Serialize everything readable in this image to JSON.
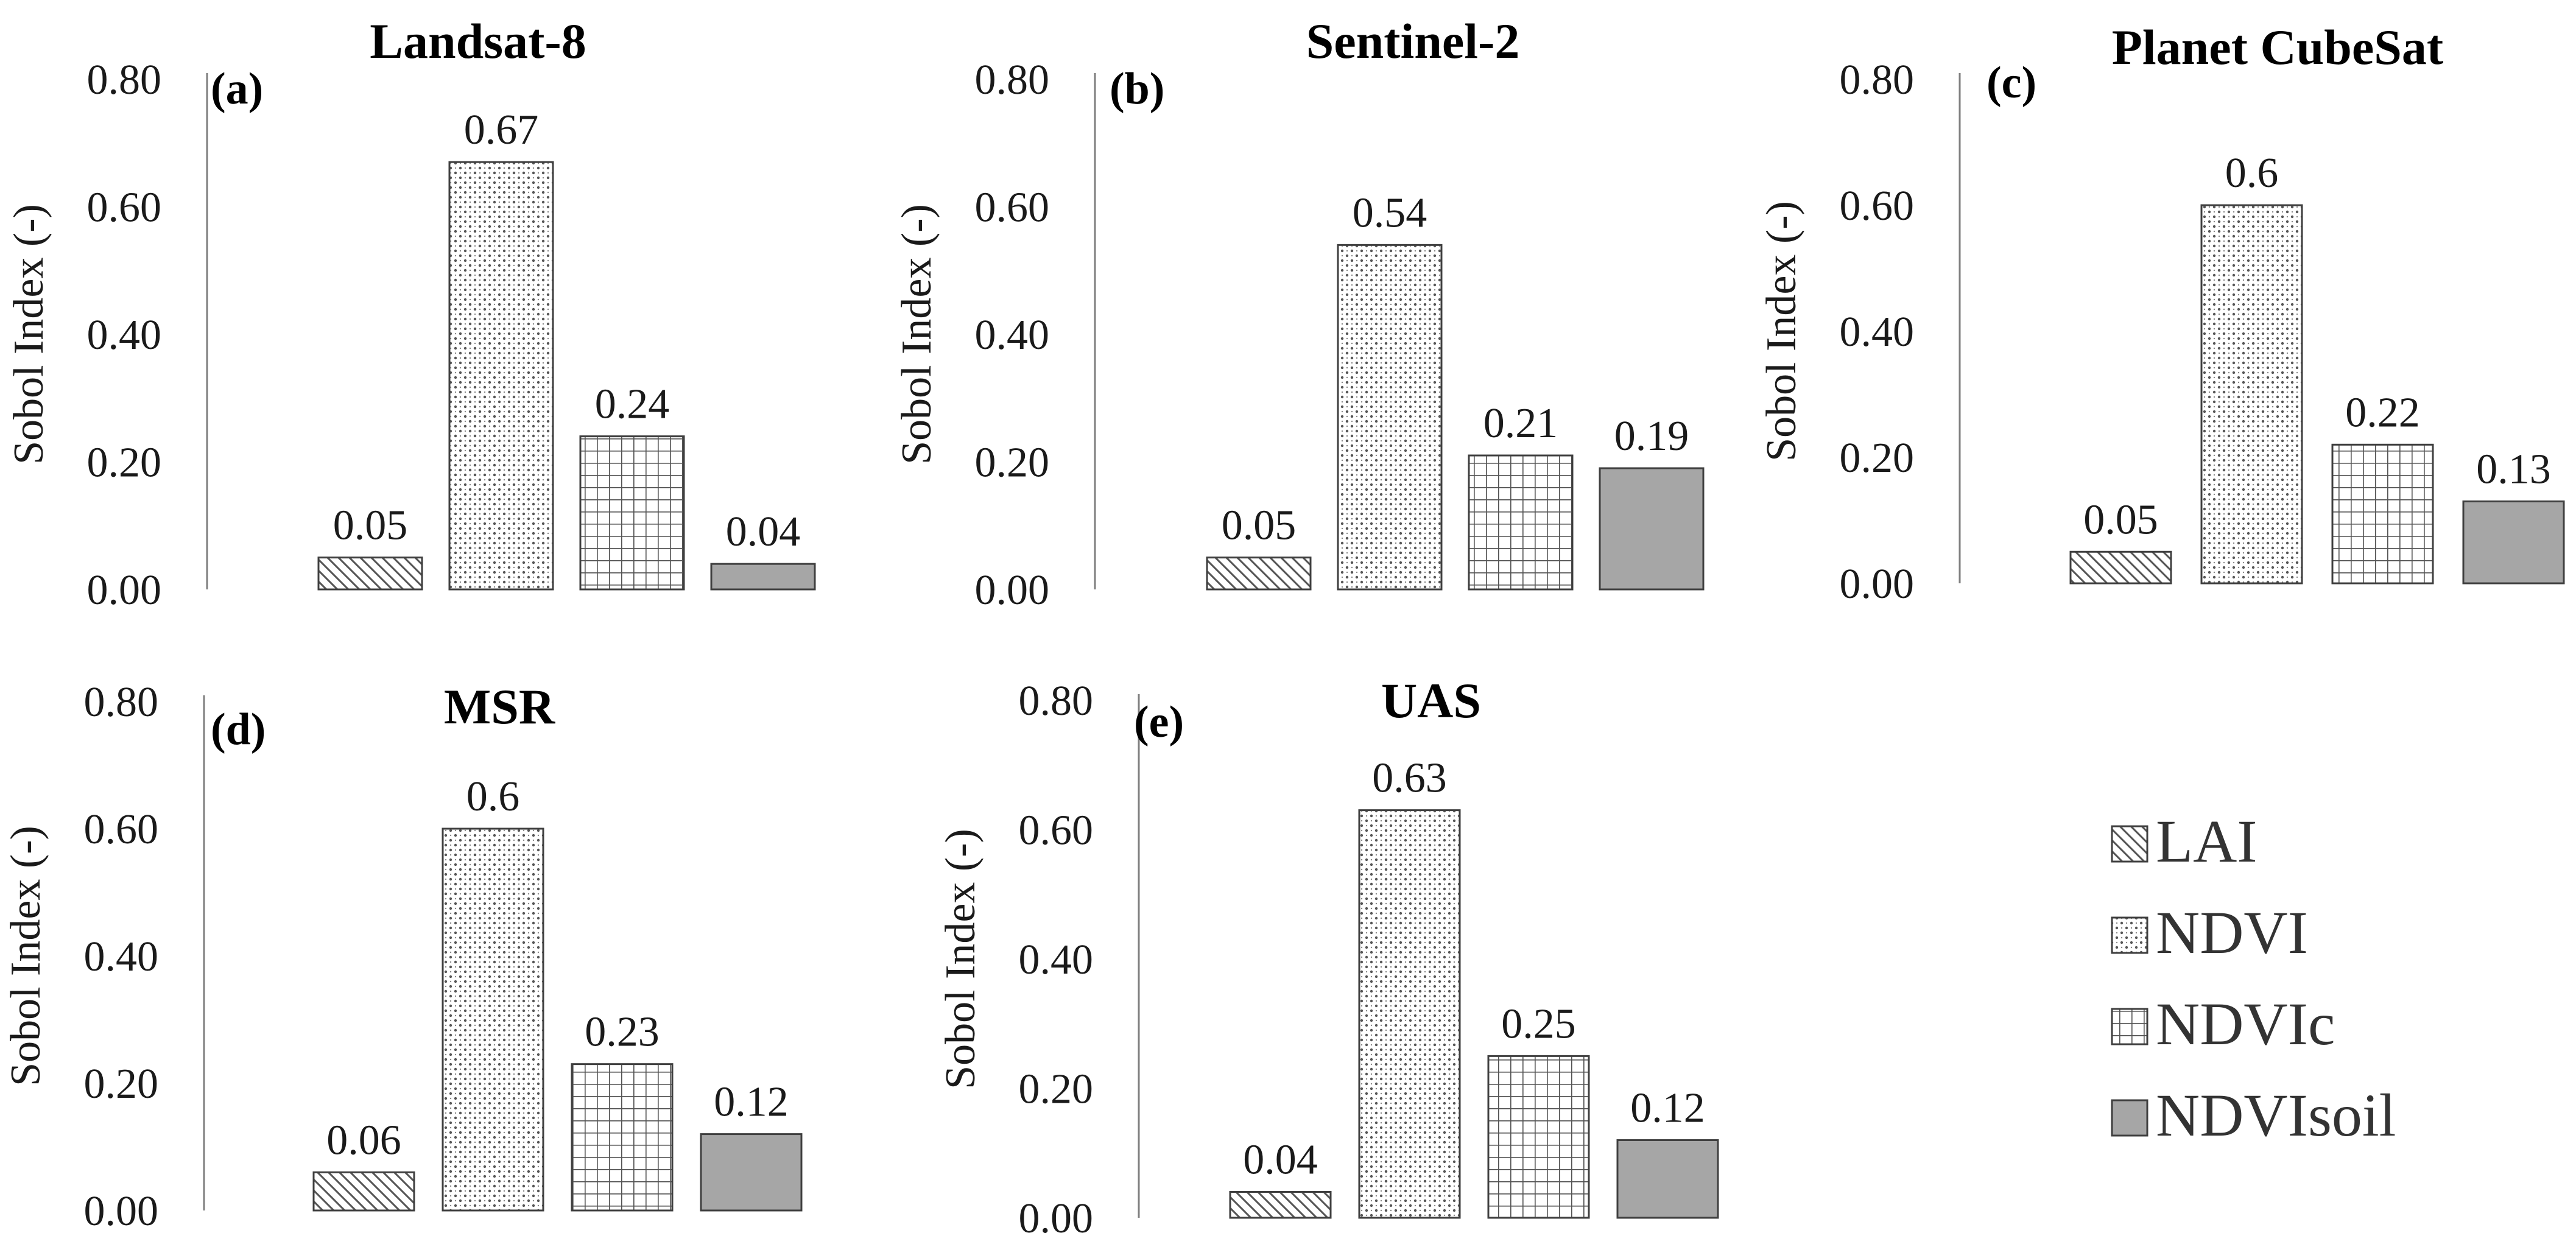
{
  "chart_data": [
    {
      "type": "bar",
      "panel_label": "(a)",
      "title": "Landsat-8",
      "ylabel": "Sobol Index (-)",
      "ylim": [
        0,
        0.8
      ],
      "yticks": [
        "0.00",
        "0.20",
        "0.40",
        "0.60",
        "0.80"
      ],
      "categories": [
        "LAI",
        "NDVI",
        "NDVIc",
        "NDVIsoil"
      ],
      "values": [
        0.05,
        0.67,
        0.24,
        0.04
      ],
      "value_labels": [
        "0.05",
        "0.67",
        "0.24",
        "0.04"
      ]
    },
    {
      "type": "bar",
      "panel_label": "(b)",
      "title": "Sentinel-2",
      "ylabel": "Sobol Index (-)",
      "ylim": [
        0,
        0.8
      ],
      "yticks": [
        "0.00",
        "0.20",
        "0.40",
        "0.60",
        "0.80"
      ],
      "categories": [
        "LAI",
        "NDVI",
        "NDVIc",
        "NDVIsoil"
      ],
      "values": [
        0.05,
        0.54,
        0.21,
        0.19
      ],
      "value_labels": [
        "0.05",
        "0.54",
        "0.21",
        "0.19"
      ]
    },
    {
      "type": "bar",
      "panel_label": "(c)",
      "title": "Planet CubeSat",
      "ylabel": "Sobol Index (-)",
      "ylim": [
        0,
        0.8
      ],
      "yticks": [
        "0.00",
        "0.20",
        "0.40",
        "0.60",
        "0.80"
      ],
      "categories": [
        "LAI",
        "NDVI",
        "NDVIc",
        "NDVIsoil"
      ],
      "values": [
        0.05,
        0.6,
        0.22,
        0.13
      ],
      "value_labels": [
        "0.05",
        "0.6",
        "0.22",
        "0.13"
      ]
    },
    {
      "type": "bar",
      "panel_label": "(d)",
      "title": "MSR",
      "ylabel": "Sobol Index (-)",
      "ylim": [
        0,
        0.8
      ],
      "yticks": [
        "0.00",
        "0.20",
        "0.40",
        "0.60",
        "0.80"
      ],
      "categories": [
        "LAI",
        "NDVI",
        "NDVIc",
        "NDVIsoil"
      ],
      "values": [
        0.06,
        0.6,
        0.23,
        0.12
      ],
      "value_labels": [
        "0.06",
        "0.6",
        "0.23",
        "0.12"
      ]
    },
    {
      "type": "bar",
      "panel_label": "(e)",
      "title": "UAS",
      "ylabel": "Sobol Index (-)",
      "ylim": [
        0,
        0.8
      ],
      "yticks": [
        "0.00",
        "0.20",
        "0.40",
        "0.60",
        "0.80"
      ],
      "categories": [
        "LAI",
        "NDVI",
        "NDVIc",
        "NDVIsoil"
      ],
      "values": [
        0.04,
        0.63,
        0.25,
        0.12
      ],
      "value_labels": [
        "0.04",
        "0.63",
        "0.25",
        "0.12"
      ]
    }
  ],
  "legend": {
    "placement": "bottom-right",
    "items": [
      {
        "label": "LAI",
        "pattern": "diagonal-hatch"
      },
      {
        "label": "NDVI",
        "pattern": "dots"
      },
      {
        "label": "NDVIc",
        "pattern": "grid"
      },
      {
        "label": "NDVIsoil",
        "pattern": "solid"
      }
    ]
  },
  "colors": {
    "solid_fill": "#a6a6a6",
    "bar_stroke": "#3f3f3f",
    "axis": "#7f7f7f",
    "text": "#1a1a1a"
  }
}
